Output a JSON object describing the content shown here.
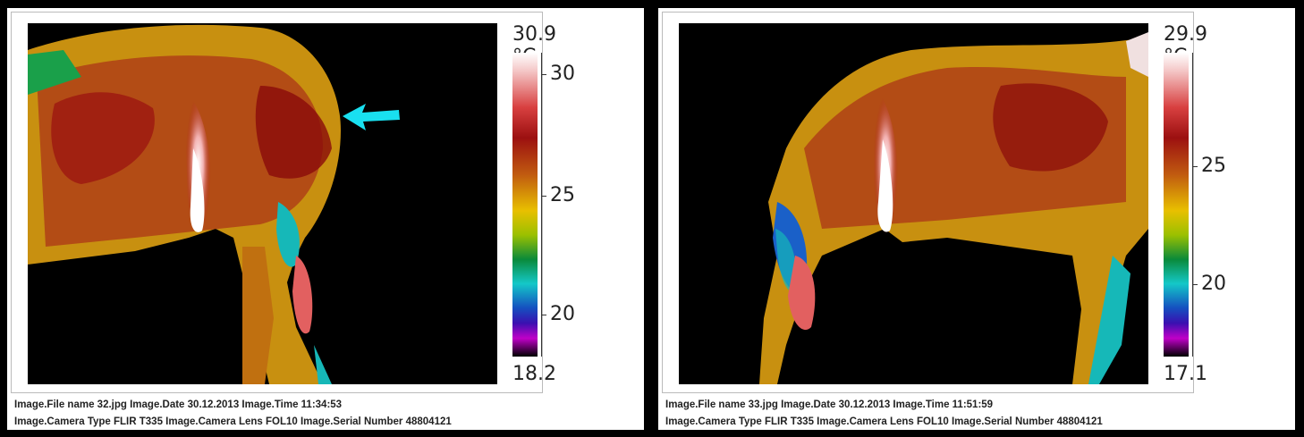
{
  "left": {
    "scale_max": "30.9 °C",
    "scale_min": "18.2",
    "ticks": [
      "30",
      "25",
      "20"
    ],
    "meta_line1": "Image.File name 32.jpg   Image.Date 30.12.2013   Image.Time 11:34:53",
    "meta_line2": "Image.Camera Type FLIR T335   Image.Camera Lens FOL10   Image.Serial Number 48804121"
  },
  "right": {
    "scale_max": "29.9 °C",
    "scale_min": "17.1",
    "ticks": [
      "25",
      "20"
    ],
    "meta_line1": "Image.File name 33.jpg   Image.Date 30.12.2013   Image.Time 11:51:59",
    "meta_line2": "Image.Camera Type FLIR T335   Image.Camera Lens FOL10   Image.Serial Number 48804121"
  },
  "annotation": {
    "arrow_color": "#19e0f0",
    "arrow_icon": "arrow-left-icon"
  }
}
